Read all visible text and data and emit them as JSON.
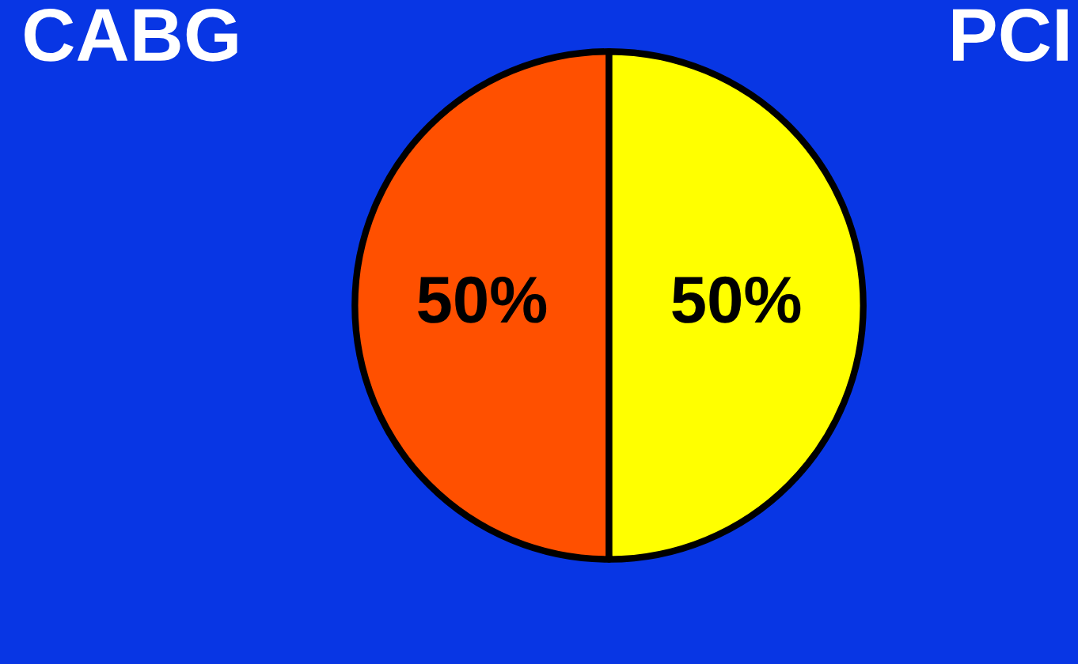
{
  "chart_data": {
    "type": "pie",
    "categories": [
      "CABG",
      "PCI"
    ],
    "values": [
      50,
      50
    ],
    "colors": [
      "#ff5000",
      "#ffff00"
    ],
    "value_labels": [
      "50%",
      "50%"
    ],
    "legend": false
  }
}
